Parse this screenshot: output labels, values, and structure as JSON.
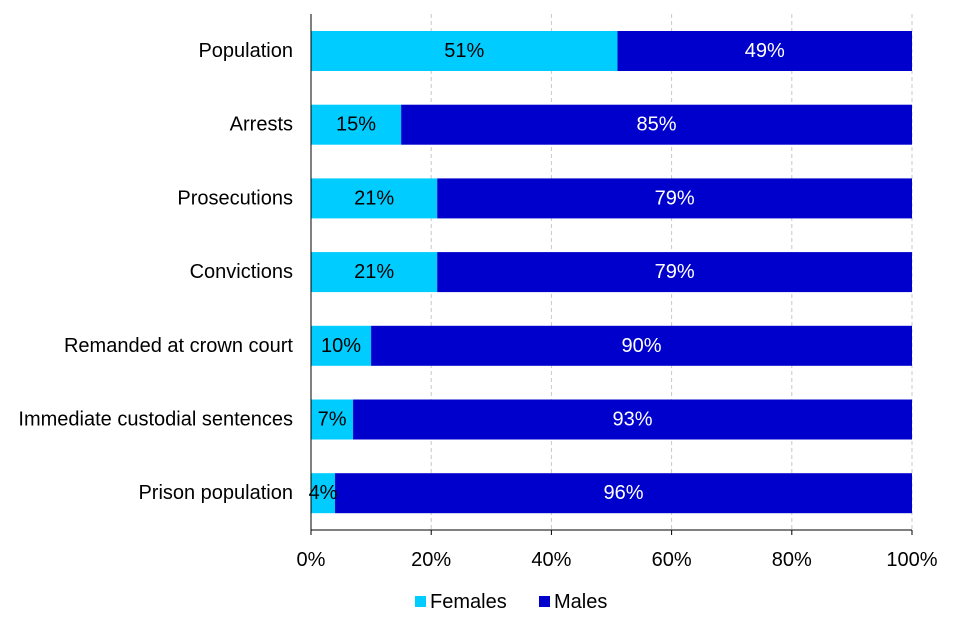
{
  "chart_data": {
    "type": "bar",
    "orientation": "horizontal",
    "stacked": true,
    "categories": [
      "Population",
      "Arrests",
      "Prosecutions",
      "Convictions",
      "Remanded at crown court",
      "Immediate custodial sentences",
      "Prison population"
    ],
    "series": [
      {
        "name": "Females",
        "color": "#00CCFF",
        "label_color": "#000000",
        "values": [
          51,
          15,
          21,
          21,
          10,
          7,
          4
        ],
        "labels": [
          "51%",
          "15%",
          "21%",
          "21%",
          "10%",
          "7%",
          "4%"
        ]
      },
      {
        "name": "Males",
        "color": "#0000CC",
        "label_color": "#FFFFFF",
        "values": [
          49,
          85,
          79,
          79,
          90,
          93,
          96
        ],
        "labels": [
          "49%",
          "85%",
          "79%",
          "79%",
          "90%",
          "93%",
          "96%"
        ]
      }
    ],
    "xlim": [
      0,
      100
    ],
    "xticks": [
      0,
      20,
      40,
      60,
      80,
      100
    ],
    "xtick_labels": [
      "0%",
      "20%",
      "40%",
      "60%",
      "80%",
      "100%"
    ],
    "grid": true,
    "legend": "bottom",
    "title": "",
    "xlabel": "",
    "ylabel": ""
  }
}
